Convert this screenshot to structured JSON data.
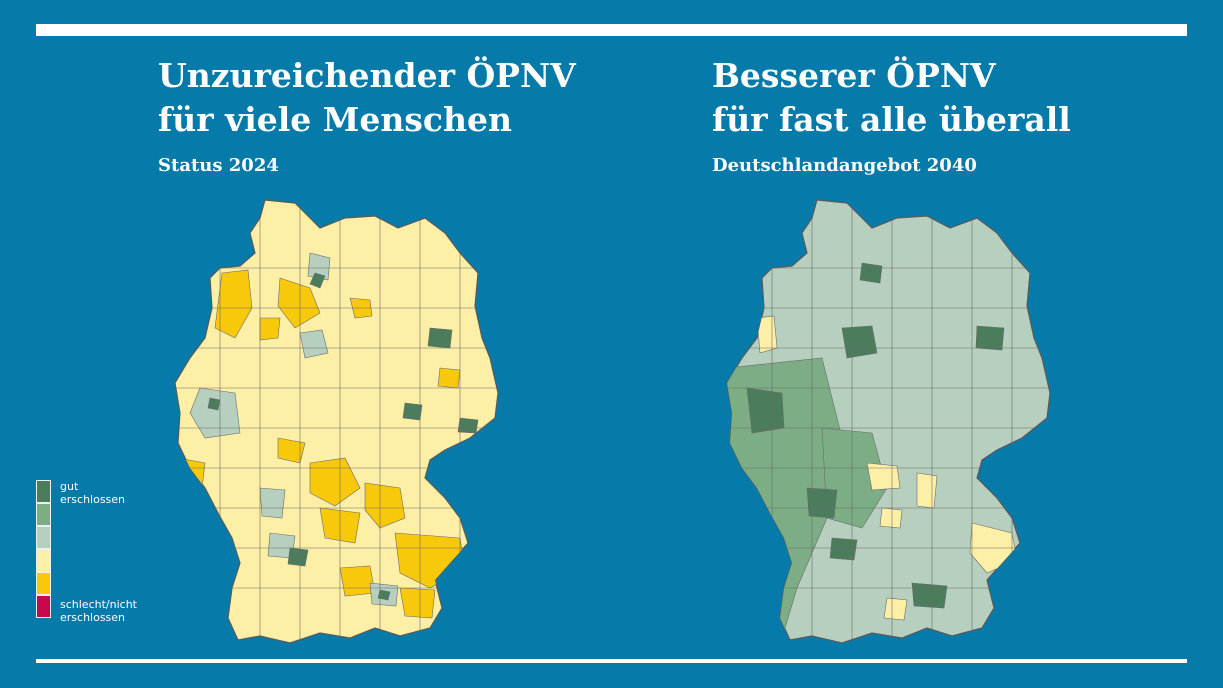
{
  "left": {
    "title_line1": "Unzureichender ÖPNV",
    "title_line2": "für viele Menschen",
    "subtitle": "Status 2024"
  },
  "right": {
    "title_line1": "Besserer ÖPNV",
    "title_line2": "für fast alle überall",
    "subtitle": "Deutschlandangebot 2040"
  },
  "legend": {
    "levels": [
      {
        "label_line1": "gut",
        "label_line2": "erschlossen",
        "color": "#4b7d5c"
      },
      {
        "label_line1": "",
        "label_line2": "",
        "color": "#7cad85"
      },
      {
        "label_line1": "",
        "label_line2": "",
        "color": "#b6cfbe"
      },
      {
        "label_line1": "",
        "label_line2": "",
        "color": "#fdf0a6"
      },
      {
        "label_line1": "",
        "label_line2": "",
        "color": "#f8c80a"
      },
      {
        "label_line1": "schlecht/nicht",
        "label_line2": "erschlossen",
        "color": "#c8074e"
      }
    ]
  },
  "colors": {
    "background": "#067aa9",
    "rule": "#ffffff",
    "border_line": "#5a5a5a"
  }
}
